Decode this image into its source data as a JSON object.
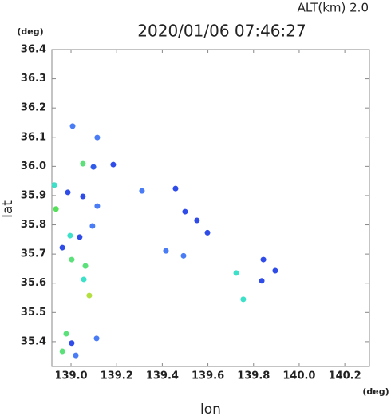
{
  "chart_data": {
    "type": "scatter",
    "title": "2020/01/06 07:46:27",
    "subtitle": "ALT(km)  2.0",
    "xlabel": "lon",
    "ylabel": "lat",
    "xunit": "(deg)",
    "yunit": "(deg)",
    "xlim": [
      138.916,
      140.308
    ],
    "ylim": [
      35.315,
      36.4
    ],
    "xticks": [
      {
        "value": 139,
        "label": "139.0"
      },
      139.2,
      139.4,
      139.6,
      139.8,
      {
        "value": 140,
        "label": "140.0"
      },
      140.2
    ],
    "yticks": [
      {
        "value": 35.4,
        "label": "35.4"
      },
      35.5,
      35.6,
      35.7,
      35.8,
      35.9,
      {
        "value": 36,
        "label": "36.0"
      },
      36.1,
      36.2,
      36.3,
      36.4
    ],
    "x": [
      139.007,
      139.052,
      139.098,
      138.927,
      138.986,
      139.052,
      138.934,
      139.115,
      139.311,
      138.996,
      139.038,
      139.094,
      138.962,
      139.003,
      139.063,
      139.056,
      139.08,
      139.416,
      139.724,
      139.843,
      139.895,
      139.836,
      139.755,
      138.979,
      139.003,
      138.962,
      139.021,
      139.112,
      139.115,
      139.185,
      139.458,
      139.5,
      139.552,
      139.493,
      139.598
    ],
    "y": [
      36.138,
      36.009,
      35.998,
      35.936,
      35.911,
      35.897,
      35.854,
      35.864,
      35.916,
      35.763,
      35.758,
      35.796,
      35.722,
      35.681,
      35.659,
      35.613,
      35.558,
      35.711,
      35.635,
      35.681,
      35.643,
      35.608,
      35.545,
      35.427,
      35.395,
      35.367,
      35.353,
      35.411,
      36.099,
      36.006,
      35.924,
      35.845,
      35.815,
      35.694,
      35.773
    ],
    "colors": [
      "#4a7cf5",
      "#5be07a",
      "#2f5be8",
      "#3de0c8",
      "#2f4be8",
      "#2f4be8",
      "#55e05a",
      "#4a7cf5",
      "#4a7cf5",
      "#3de0c8",
      "#2f4be8",
      "#4a7cf5",
      "#2f4be8",
      "#5be07a",
      "#5be07a",
      "#3de0c8",
      "#b3e040",
      "#4a7cf5",
      "#3de0c8",
      "#2f4be8",
      "#2f4be8",
      "#2f4be8",
      "#3de0c8",
      "#5be07a",
      "#2f4be8",
      "#5be07a",
      "#4a7cf5",
      "#4a7cf5",
      "#4a7cf5",
      "#2f4be8",
      "#2f4be8",
      "#2f4be8",
      "#2f4be8",
      "#4a7cf5",
      "#2f4be8"
    ]
  }
}
